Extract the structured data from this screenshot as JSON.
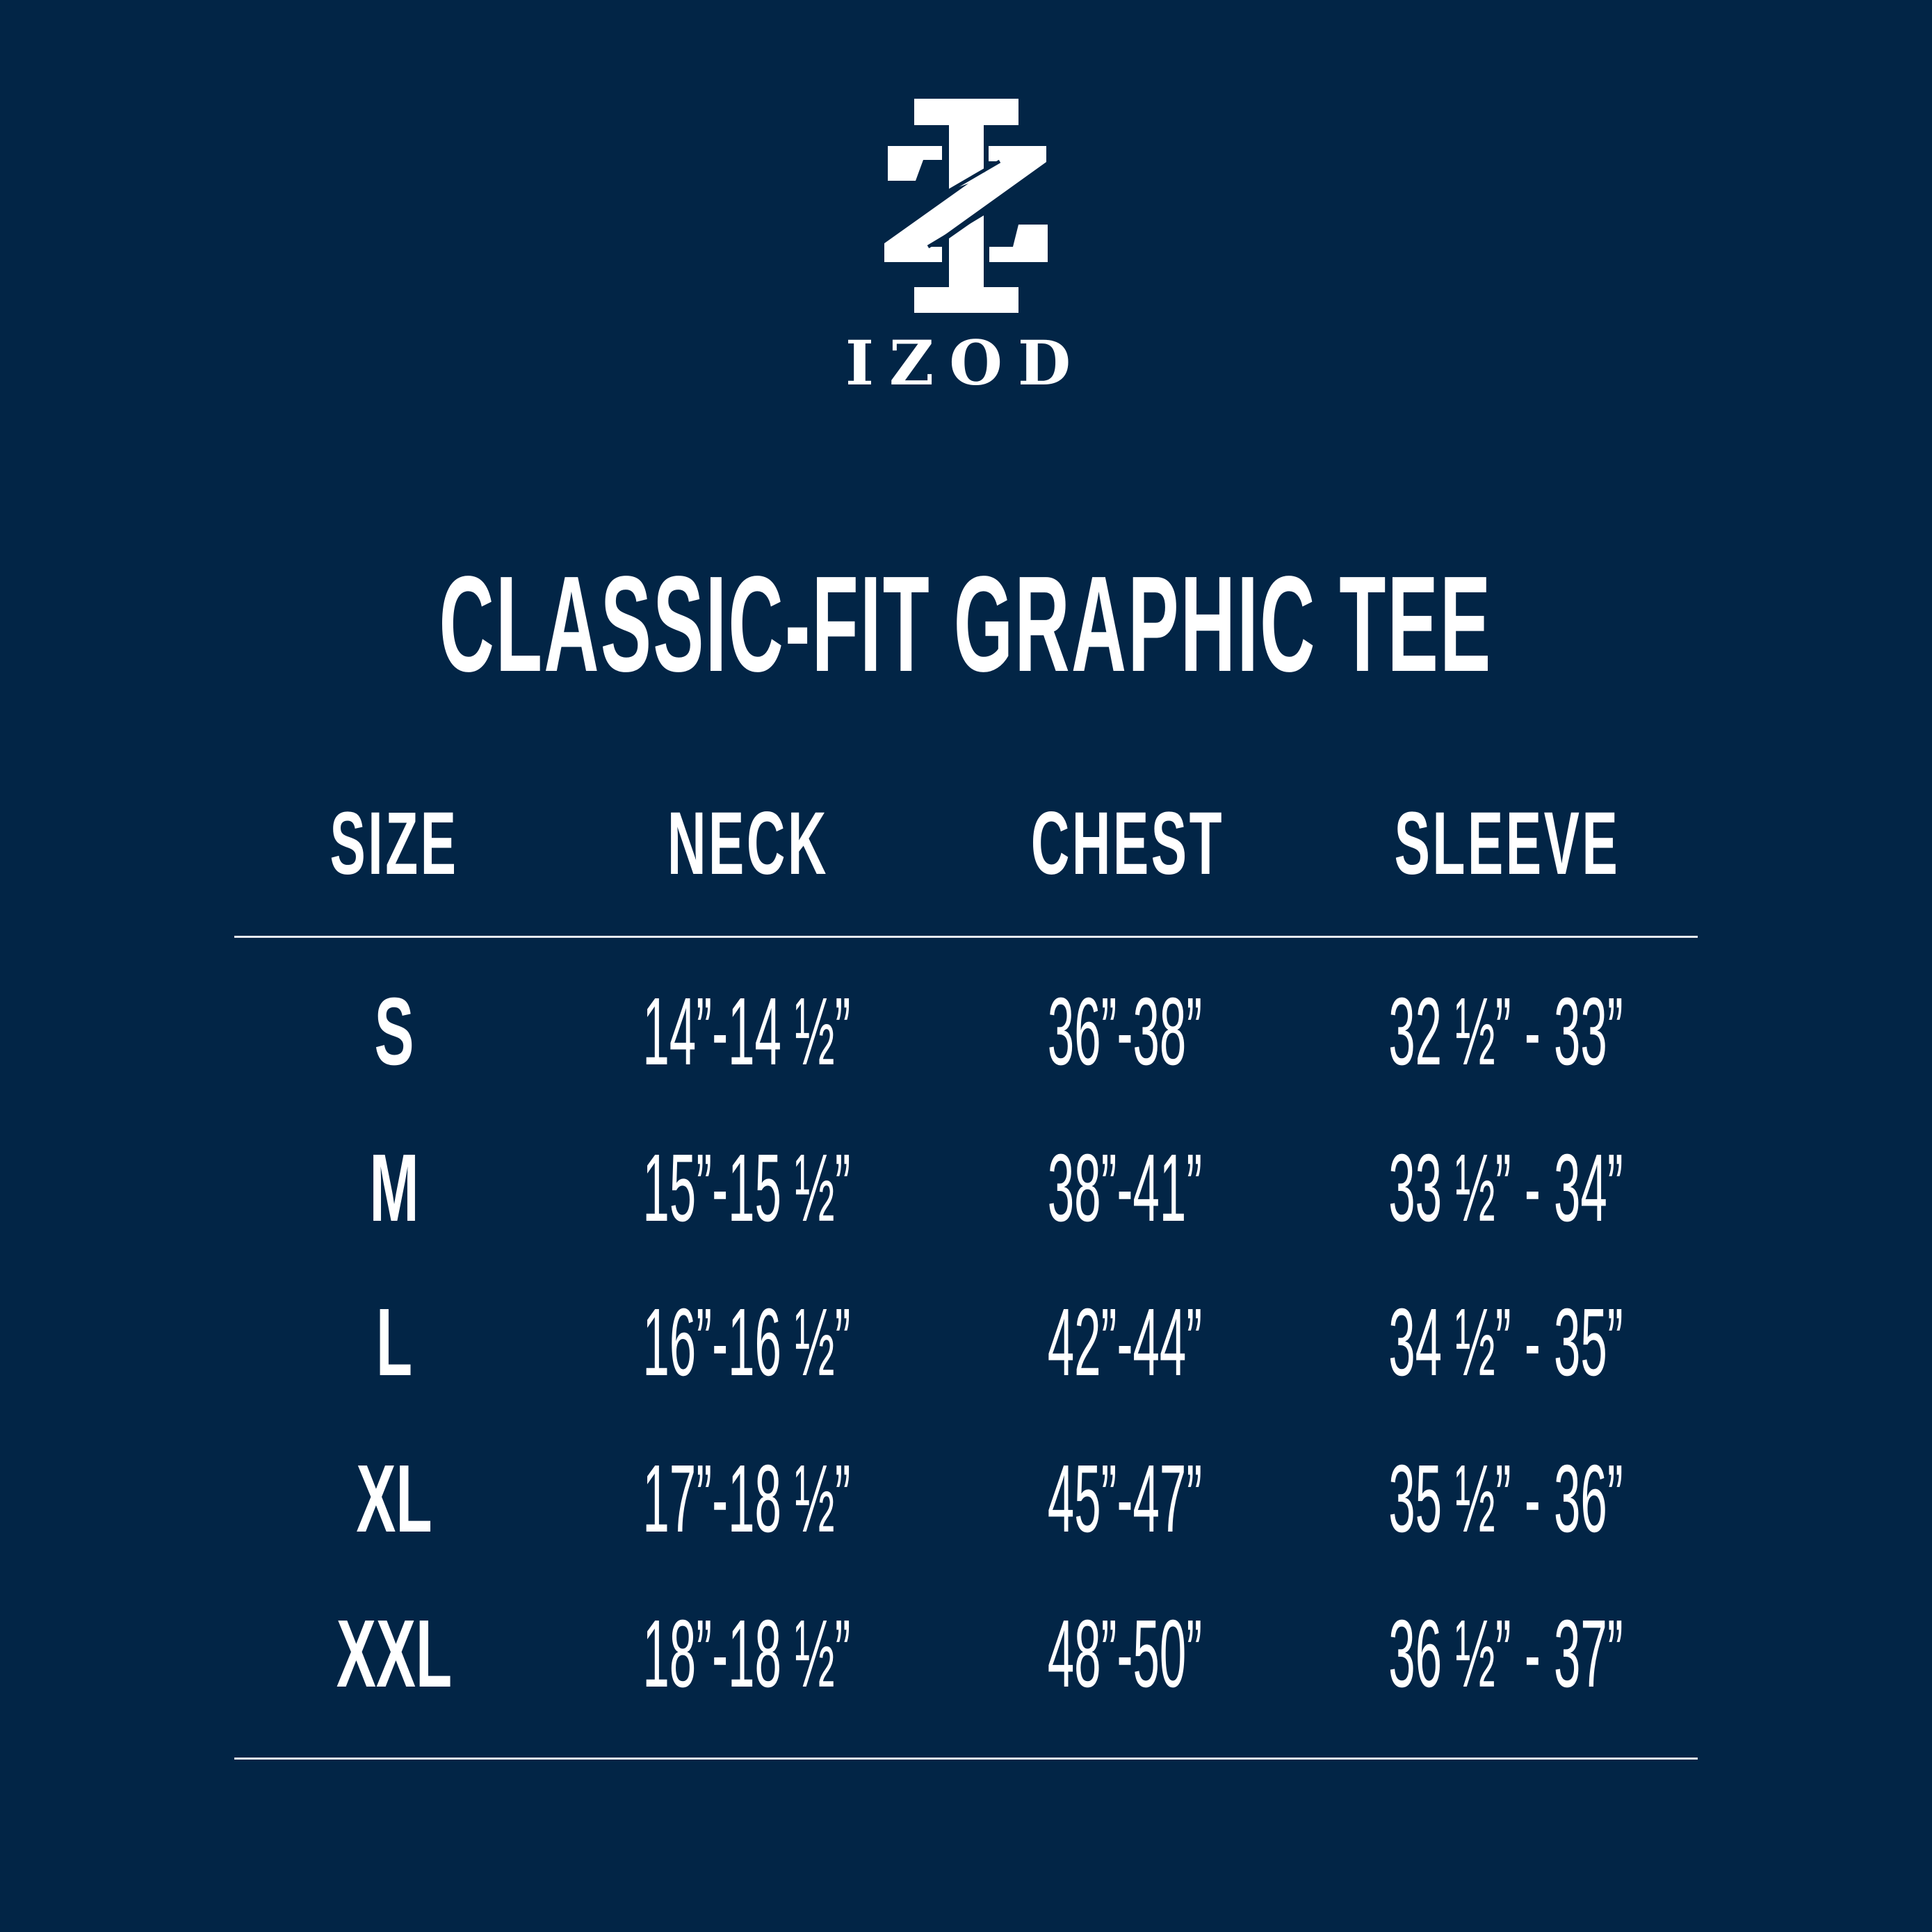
{
  "brand": {
    "name": "IZOD",
    "logo_icon": "izod-monogram-icon"
  },
  "title": "CLASSIC-FIT GRAPHIC TEE",
  "table": {
    "headers": [
      "SIZE",
      "NECK",
      "CHEST",
      "SLEEVE"
    ],
    "rows": [
      {
        "size": "S",
        "neck": "14”-14 ½”",
        "chest": "36”-38”",
        "sleeve": "32 ½” - 33”"
      },
      {
        "size": "M",
        "neck": "15”-15 ½”",
        "chest": "38”-41”",
        "sleeve": "33 ½” - 34”"
      },
      {
        "size": "L",
        "neck": "16”-16 ½”",
        "chest": "42”-44”",
        "sleeve": "34 ½” - 35”"
      },
      {
        "size": "XL",
        "neck": "17”-18 ½”",
        "chest": "45”-47”",
        "sleeve": "35 ½” - 36”"
      },
      {
        "size": "XXL",
        "neck": "18”-18 ½”",
        "chest": "48”-50”",
        "sleeve": "36 ½” - 37”"
      }
    ]
  },
  "colors": {
    "background": "#022546",
    "text": "#ffffff"
  }
}
